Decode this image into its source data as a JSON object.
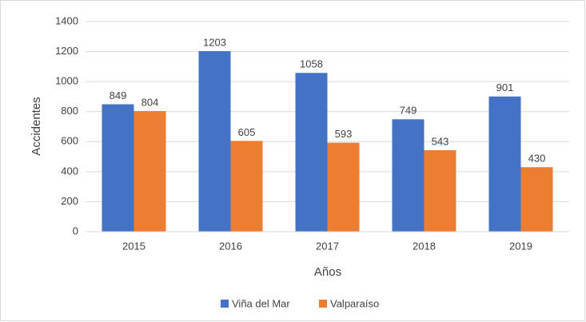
{
  "chart_data": {
    "type": "bar",
    "categories": [
      "2015",
      "2016",
      "2017",
      "2018",
      "2019"
    ],
    "series": [
      {
        "name": "Viña del Mar",
        "color": "#4472c4",
        "values": [
          849,
          1203,
          1058,
          749,
          901
        ]
      },
      {
        "name": "Valparaíso",
        "color": "#ed7d31",
        "values": [
          804,
          605,
          593,
          543,
          430
        ]
      }
    ],
    "x_label": "Años",
    "y_label": "Accidentes",
    "ylim": [
      0,
      1400
    ],
    "yticks": [
      0,
      200,
      400,
      600,
      800,
      1000,
      1200,
      1400
    ],
    "grid": true,
    "legend": "bottom"
  }
}
